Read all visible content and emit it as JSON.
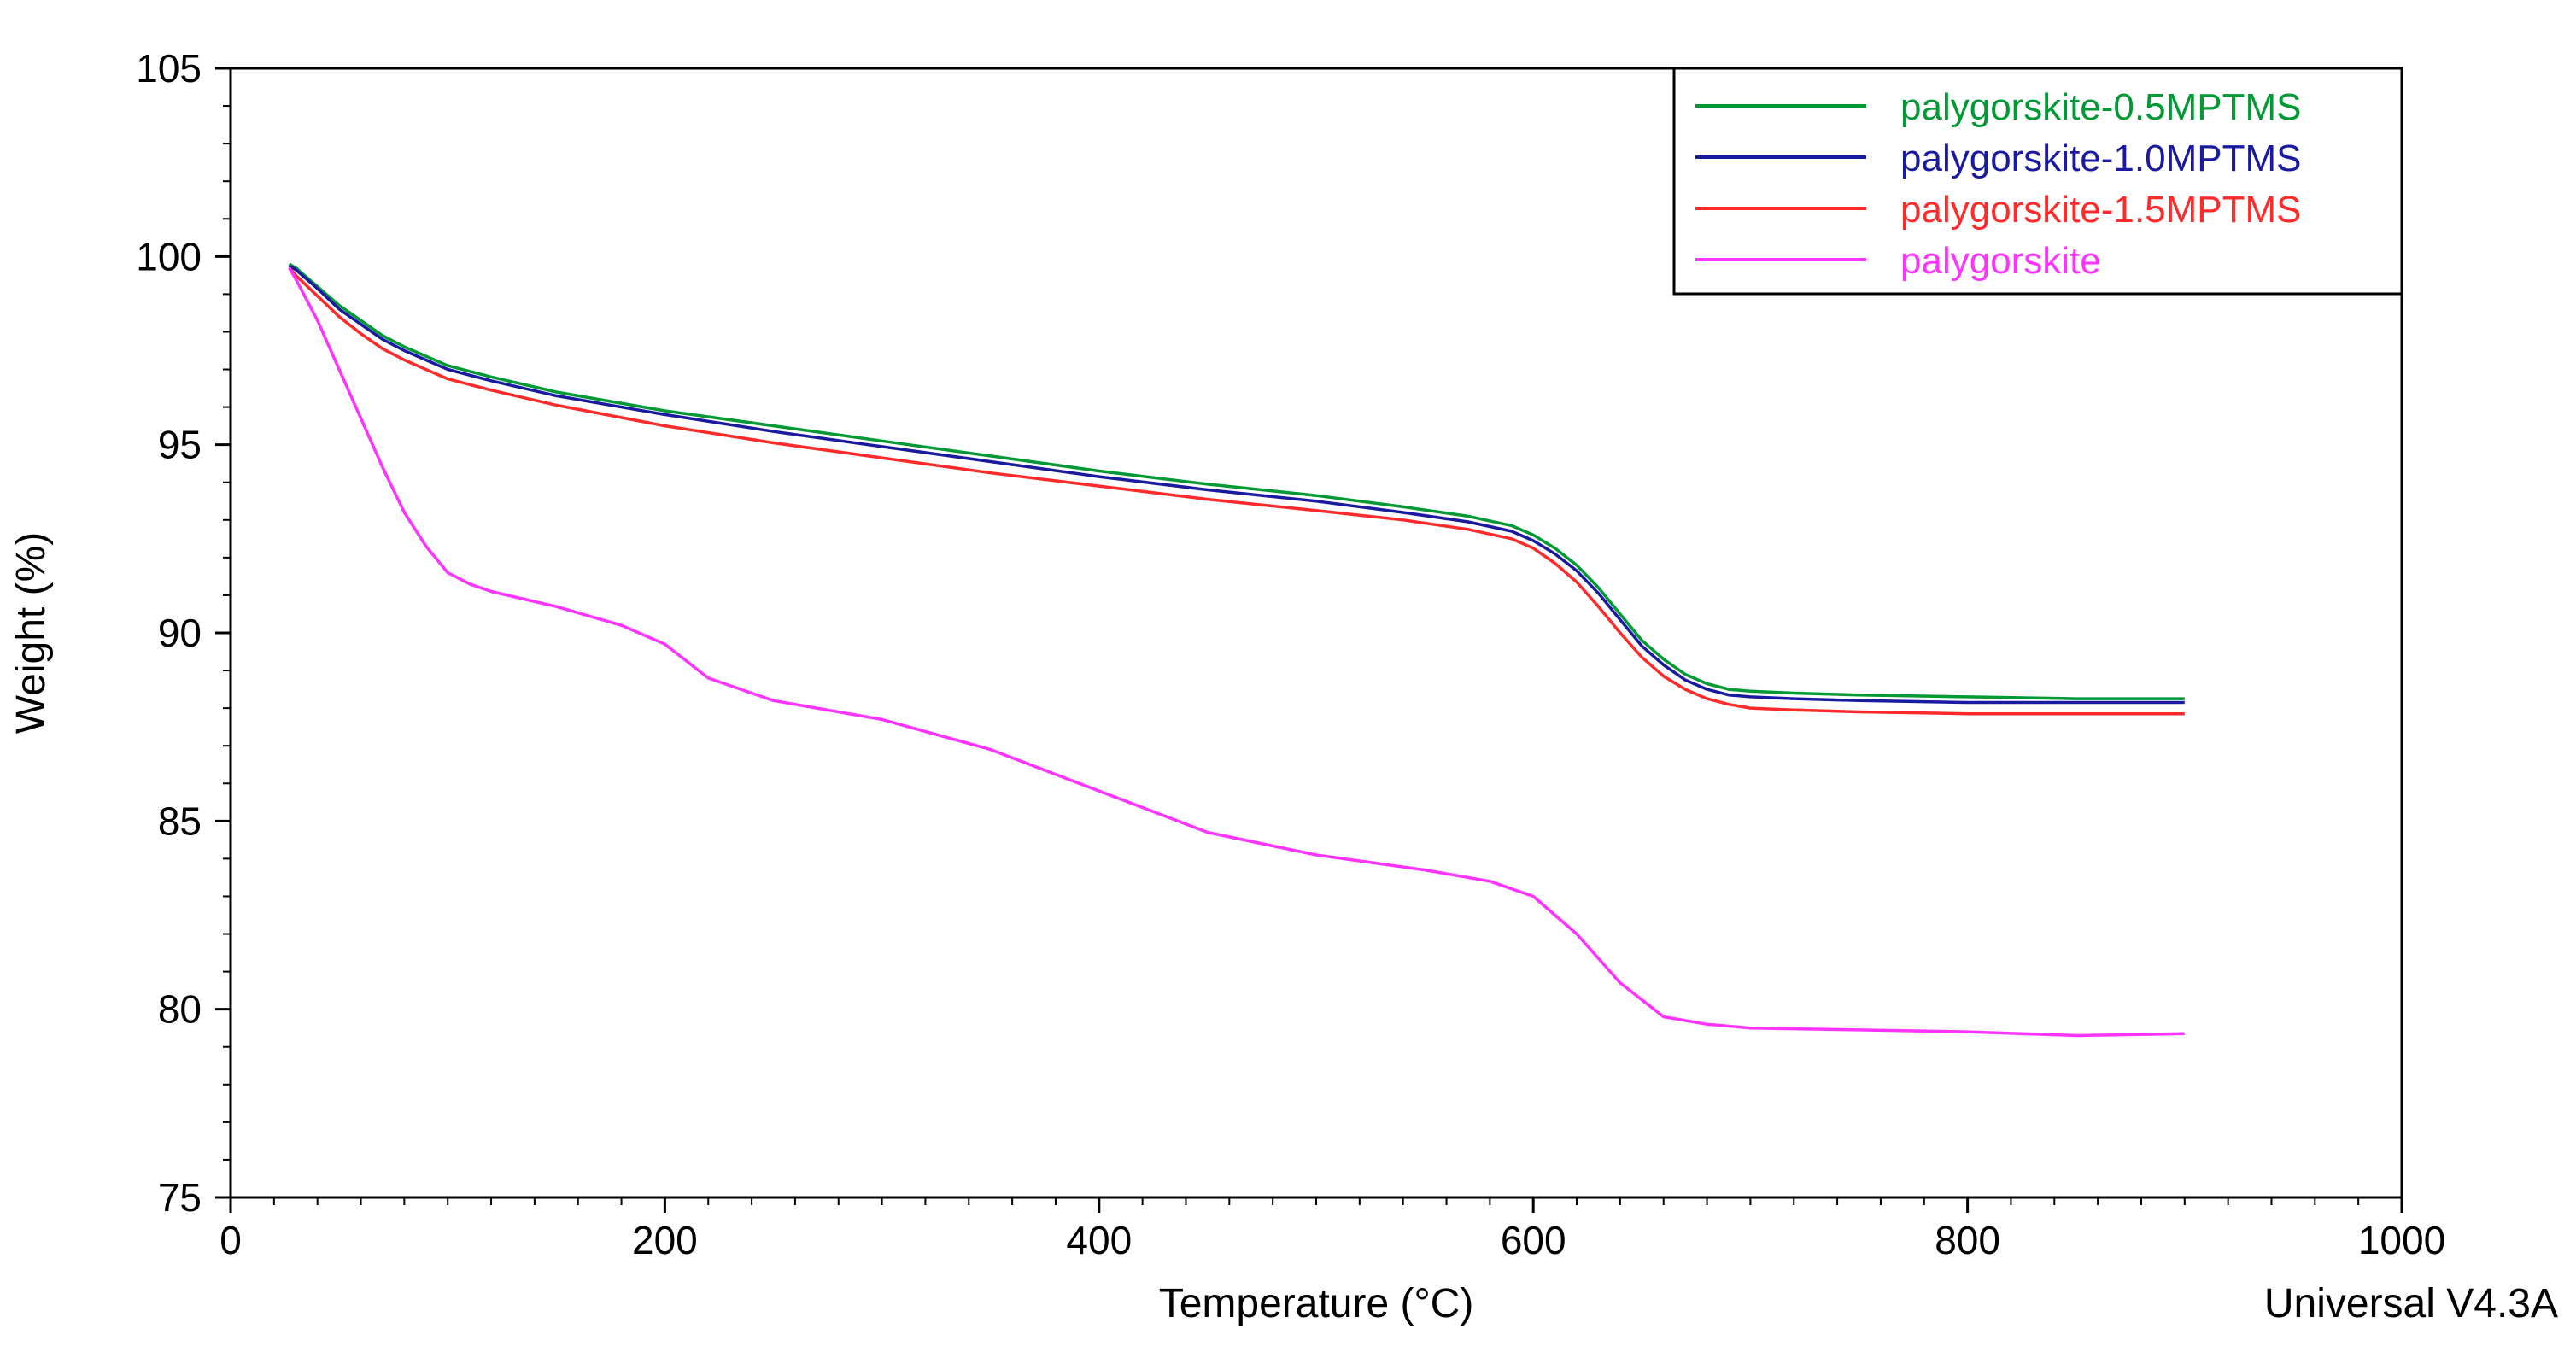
{
  "chart_data": {
    "type": "line",
    "title": "",
    "xlabel": "Temperature (°C)",
    "ylabel": "Weight (%)",
    "xlim": [
      0,
      1000
    ],
    "ylim": [
      75,
      105
    ],
    "xticks": [
      0,
      200,
      400,
      600,
      800,
      1000
    ],
    "yticks": [
      75,
      80,
      85,
      90,
      95,
      100,
      105
    ],
    "grid": false,
    "legend": "top-right",
    "watermark": "Universal V4.3A",
    "series": [
      {
        "name": "palygorskite-0.5MPTMS",
        "color": "#009933",
        "x": [
          27,
          30,
          40,
          50,
          60,
          70,
          80,
          100,
          120,
          150,
          200,
          250,
          300,
          350,
          400,
          450,
          500,
          540,
          570,
          590,
          600,
          610,
          620,
          630,
          640,
          650,
          660,
          670,
          680,
          690,
          700,
          720,
          750,
          800,
          850,
          900
        ],
        "y": [
          99.8,
          99.7,
          99.2,
          98.7,
          98.3,
          97.9,
          97.6,
          97.1,
          96.8,
          96.4,
          95.9,
          95.5,
          95.1,
          94.7,
          94.3,
          93.95,
          93.65,
          93.35,
          93.1,
          92.85,
          92.6,
          92.25,
          91.8,
          91.2,
          90.5,
          89.8,
          89.3,
          88.9,
          88.65,
          88.5,
          88.45,
          88.4,
          88.35,
          88.3,
          88.25,
          88.25
        ]
      },
      {
        "name": "palygorskite-1.0MPTMS",
        "color": "#1a1aa0",
        "x": [
          27,
          30,
          40,
          50,
          60,
          70,
          80,
          100,
          120,
          150,
          200,
          250,
          300,
          350,
          400,
          450,
          500,
          540,
          570,
          590,
          600,
          610,
          620,
          630,
          640,
          650,
          660,
          670,
          680,
          690,
          700,
          720,
          750,
          800,
          850,
          900
        ],
        "y": [
          99.75,
          99.65,
          99.15,
          98.6,
          98.2,
          97.8,
          97.5,
          97.0,
          96.7,
          96.3,
          95.8,
          95.35,
          94.95,
          94.55,
          94.15,
          93.8,
          93.5,
          93.2,
          92.95,
          92.7,
          92.45,
          92.1,
          91.65,
          91.05,
          90.35,
          89.65,
          89.15,
          88.75,
          88.5,
          88.35,
          88.3,
          88.25,
          88.2,
          88.15,
          88.15,
          88.15
        ]
      },
      {
        "name": "palygorskite-1.5MPTMS",
        "color": "#ff2a2a",
        "x": [
          27,
          30,
          40,
          50,
          60,
          70,
          80,
          100,
          120,
          150,
          200,
          250,
          300,
          350,
          400,
          450,
          500,
          540,
          570,
          590,
          600,
          610,
          620,
          630,
          640,
          650,
          660,
          670,
          680,
          690,
          700,
          720,
          750,
          800,
          850,
          900
        ],
        "y": [
          99.7,
          99.5,
          98.95,
          98.4,
          97.95,
          97.55,
          97.25,
          96.75,
          96.45,
          96.05,
          95.5,
          95.05,
          94.65,
          94.25,
          93.9,
          93.55,
          93.25,
          93.0,
          92.75,
          92.5,
          92.25,
          91.85,
          91.35,
          90.7,
          90.0,
          89.35,
          88.85,
          88.5,
          88.25,
          88.1,
          88.0,
          87.95,
          87.9,
          87.85,
          87.85,
          87.85
        ]
      },
      {
        "name": "palygorskite",
        "color": "#ff33ff",
        "x": [
          27,
          30,
          40,
          50,
          60,
          70,
          80,
          90,
          100,
          110,
          120,
          150,
          180,
          200,
          220,
          250,
          300,
          350,
          400,
          450,
          500,
          550,
          580,
          600,
          620,
          640,
          660,
          680,
          700,
          750,
          800,
          850,
          900
        ],
        "y": [
          99.7,
          99.4,
          98.3,
          97.0,
          95.7,
          94.4,
          93.2,
          92.3,
          91.6,
          91.3,
          91.1,
          90.7,
          90.2,
          89.7,
          88.8,
          88.2,
          87.7,
          86.9,
          85.8,
          84.7,
          84.1,
          83.7,
          83.4,
          83.0,
          82.0,
          80.7,
          79.8,
          79.6,
          79.5,
          79.45,
          79.4,
          79.3,
          79.35
        ]
      }
    ]
  }
}
